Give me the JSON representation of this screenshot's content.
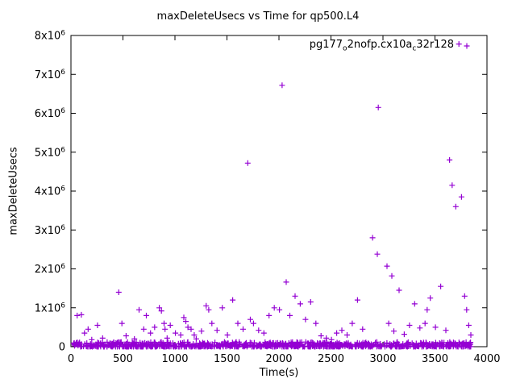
{
  "page": {
    "background": "#ffffff"
  },
  "chart": {
    "title": "maxDeleteUsecs vs Time for qp500.L4",
    "xlabel": "Time(s)",
    "ylabel": "maxDeleteUsecs"
  },
  "legend": {
    "seg1": "pg177",
    "sub1": "o",
    "seg2": "2nofp.cx10a",
    "sub2": "c",
    "seg3": "32r128",
    "marker": "plus"
  },
  "chart_data": {
    "type": "scatter",
    "title": "maxDeleteUsecs vs Time for qp500.L4",
    "xlabel": "Time(s)",
    "ylabel": "maxDeleteUsecs",
    "xlim": [
      0,
      4000
    ],
    "ylim": [
      0,
      8000000
    ],
    "xticks": [
      0,
      500,
      1000,
      1500,
      2000,
      2500,
      3000,
      3500,
      4000
    ],
    "xtick_labels": [
      "0",
      "500",
      "1000",
      "1500",
      "2000",
      "2500",
      "3000",
      "3500",
      "4000"
    ],
    "yticks": [
      0,
      1000000,
      2000000,
      3000000,
      4000000,
      5000000,
      6000000,
      7000000,
      8000000
    ],
    "ytick_labels": [
      "0",
      "1x10^6",
      "2x10^6",
      "3x10^6",
      "4x10^6",
      "5x10^6",
      "6x10^6",
      "7x10^6",
      "8x10^6"
    ],
    "grid": false,
    "legend_position": "top-right",
    "marker_color": "#9400d3",
    "series": [
      {
        "name": "pg177_o2nofp.cx10a_c32r128",
        "marker": "plus",
        "color": "#9400d3",
        "points": [
          [
            60,
            800000
          ],
          [
            100,
            820000
          ],
          [
            130,
            350000
          ],
          [
            165,
            450000
          ],
          [
            200,
            180000
          ],
          [
            255,
            550000
          ],
          [
            305,
            220000
          ],
          [
            460,
            1400000
          ],
          [
            490,
            600000
          ],
          [
            530,
            280000
          ],
          [
            610,
            200000
          ],
          [
            655,
            950000
          ],
          [
            700,
            450000
          ],
          [
            725,
            800000
          ],
          [
            765,
            350000
          ],
          [
            805,
            500000
          ],
          [
            850,
            1000000
          ],
          [
            870,
            920000
          ],
          [
            895,
            600000
          ],
          [
            905,
            450000
          ],
          [
            925,
            220000
          ],
          [
            955,
            550000
          ],
          [
            1005,
            350000
          ],
          [
            1055,
            300000
          ],
          [
            1085,
            750000
          ],
          [
            1105,
            650000
          ],
          [
            1125,
            500000
          ],
          [
            1155,
            450000
          ],
          [
            1185,
            300000
          ],
          [
            1205,
            200000
          ],
          [
            1255,
            400000
          ],
          [
            1300,
            1050000
          ],
          [
            1325,
            950000
          ],
          [
            1355,
            600000
          ],
          [
            1405,
            420000
          ],
          [
            1455,
            1000000
          ],
          [
            1505,
            300000
          ],
          [
            1555,
            1200000
          ],
          [
            1605,
            600000
          ],
          [
            1655,
            450000
          ],
          [
            1700,
            4720000
          ],
          [
            1725,
            700000
          ],
          [
            1755,
            600000
          ],
          [
            1805,
            420000
          ],
          [
            1855,
            350000
          ],
          [
            1905,
            800000
          ],
          [
            1955,
            1000000
          ],
          [
            2005,
            950000
          ],
          [
            2030,
            6720000
          ],
          [
            2070,
            1660000
          ],
          [
            2105,
            800000
          ],
          [
            2155,
            1300000
          ],
          [
            2205,
            1100000
          ],
          [
            2255,
            700000
          ],
          [
            2305,
            1150000
          ],
          [
            2355,
            600000
          ],
          [
            2405,
            280000
          ],
          [
            2455,
            220000
          ],
          [
            2505,
            180000
          ],
          [
            2555,
            350000
          ],
          [
            2605,
            420000
          ],
          [
            2655,
            300000
          ],
          [
            2705,
            600000
          ],
          [
            2755,
            1200000
          ],
          [
            2805,
            450000
          ],
          [
            2900,
            2800000
          ],
          [
            2946,
            2380000
          ],
          [
            2955,
            6150000
          ],
          [
            3039,
            2070000
          ],
          [
            3085,
            1820000
          ],
          [
            3055,
            600000
          ],
          [
            3105,
            400000
          ],
          [
            3155,
            1450000
          ],
          [
            3205,
            320000
          ],
          [
            3255,
            550000
          ],
          [
            3305,
            1100000
          ],
          [
            3355,
            480000
          ],
          [
            3405,
            600000
          ],
          [
            3425,
            950000
          ],
          [
            3455,
            1250000
          ],
          [
            3505,
            500000
          ],
          [
            3555,
            1550000
          ],
          [
            3605,
            420000
          ],
          [
            3640,
            4800000
          ],
          [
            3665,
            4150000
          ],
          [
            3700,
            3600000
          ],
          [
            3730,
            7780000
          ],
          [
            3755,
            3850000
          ],
          [
            3785,
            1300000
          ],
          [
            3805,
            950000
          ],
          [
            3825,
            550000
          ],
          [
            3845,
            300000
          ]
        ]
      }
    ],
    "dense_band": {
      "description": "dense cluster of samples hugging y=0 across the whole time range",
      "count": 900,
      "x_range": [
        20,
        3860
      ],
      "y_range": [
        0,
        120000
      ],
      "seed": 42
    }
  }
}
